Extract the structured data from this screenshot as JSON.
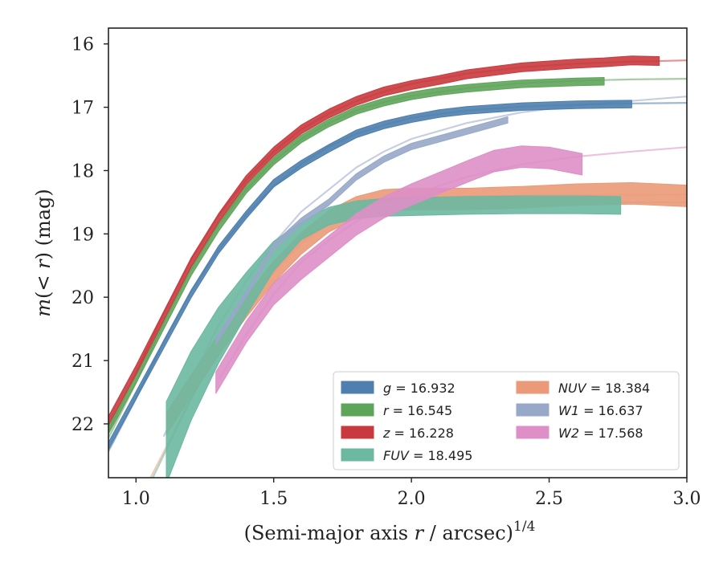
{
  "chart_data": {
    "type": "line",
    "xlabel": "(Semi-major axis r / arcsec)",
    "xlabel_sup": "1/4",
    "ylabel": "m(< r) (mag)",
    "xlim": [
      0.9,
      3.0
    ],
    "ylim": [
      22.85,
      15.75
    ],
    "y_inverted": true,
    "xticks": [
      1.0,
      1.5,
      2.0,
      2.5,
      3.0
    ],
    "xtick_labels": [
      "1.0",
      "1.5",
      "2.0",
      "2.5",
      "3.0"
    ],
    "yticks": [
      16,
      17,
      18,
      19,
      20,
      21,
      22
    ],
    "ytick_labels": [
      "16",
      "17",
      "18",
      "19",
      "20",
      "21",
      "22"
    ],
    "grid": false,
    "legend_position": "lower-right",
    "series": [
      {
        "name": "g",
        "label_value": "= 16.932",
        "color": "#4e7fae",
        "fit": [
          [
            0.88,
            22.6
          ],
          [
            1.0,
            21.6
          ],
          [
            1.1,
            20.7
          ],
          [
            1.2,
            19.9
          ],
          [
            1.3,
            19.25
          ],
          [
            1.4,
            18.7
          ],
          [
            1.5,
            18.25
          ],
          [
            1.6,
            17.9
          ],
          [
            1.7,
            17.62
          ],
          [
            1.8,
            17.42
          ],
          [
            1.9,
            17.28
          ],
          [
            2.0,
            17.17
          ],
          [
            2.2,
            17.05
          ],
          [
            2.4,
            16.99
          ],
          [
            2.6,
            16.96
          ],
          [
            2.8,
            16.94
          ],
          [
            3.0,
            16.93
          ]
        ],
        "data": [
          [
            0.9,
            22.35
          ],
          [
            1.0,
            21.55
          ],
          [
            1.1,
            20.75
          ],
          [
            1.2,
            19.95
          ],
          [
            1.3,
            19.25
          ],
          [
            1.4,
            18.7
          ],
          [
            1.5,
            18.2
          ],
          [
            1.6,
            17.9
          ],
          [
            1.7,
            17.65
          ],
          [
            1.8,
            17.42
          ],
          [
            1.9,
            17.28
          ],
          [
            2.0,
            17.18
          ],
          [
            2.1,
            17.1
          ],
          [
            2.2,
            17.05
          ],
          [
            2.4,
            16.99
          ],
          [
            2.6,
            16.96
          ],
          [
            2.8,
            16.95
          ]
        ],
        "band": 0.06
      },
      {
        "name": "r",
        "label_value": "= 16.545",
        "color": "#5fa45b",
        "fit": [
          [
            0.88,
            22.4
          ],
          [
            1.0,
            21.35
          ],
          [
            1.1,
            20.4
          ],
          [
            1.2,
            19.55
          ],
          [
            1.3,
            18.85
          ],
          [
            1.4,
            18.3
          ],
          [
            1.5,
            17.85
          ],
          [
            1.6,
            17.5
          ],
          [
            1.7,
            17.25
          ],
          [
            1.8,
            17.05
          ],
          [
            1.9,
            16.92
          ],
          [
            2.0,
            16.82
          ],
          [
            2.2,
            16.7
          ],
          [
            2.4,
            16.62
          ],
          [
            2.6,
            16.58
          ],
          [
            2.8,
            16.56
          ],
          [
            3.0,
            16.55
          ]
        ],
        "data": [
          [
            0.9,
            22.1
          ],
          [
            1.0,
            21.3
          ],
          [
            1.1,
            20.45
          ],
          [
            1.2,
            19.6
          ],
          [
            1.3,
            18.9
          ],
          [
            1.4,
            18.3
          ],
          [
            1.5,
            17.85
          ],
          [
            1.6,
            17.5
          ],
          [
            1.7,
            17.25
          ],
          [
            1.8,
            17.05
          ],
          [
            1.9,
            16.92
          ],
          [
            2.0,
            16.82
          ],
          [
            2.1,
            16.75
          ],
          [
            2.2,
            16.7
          ],
          [
            2.4,
            16.63
          ],
          [
            2.6,
            16.6
          ],
          [
            2.7,
            16.59
          ]
        ],
        "band": 0.06
      },
      {
        "name": "z",
        "label_value": "= 16.228",
        "color": "#c93a3e",
        "fit": [
          [
            0.88,
            22.3
          ],
          [
            1.0,
            21.2
          ],
          [
            1.1,
            20.25
          ],
          [
            1.2,
            19.4
          ],
          [
            1.3,
            18.7
          ],
          [
            1.4,
            18.15
          ],
          [
            1.5,
            17.7
          ],
          [
            1.6,
            17.35
          ],
          [
            1.7,
            17.1
          ],
          [
            1.8,
            16.9
          ],
          [
            1.9,
            16.75
          ],
          [
            2.0,
            16.63
          ],
          [
            2.2,
            16.47
          ],
          [
            2.4,
            16.37
          ],
          [
            2.6,
            16.31
          ],
          [
            2.8,
            16.28
          ],
          [
            3.0,
            16.26
          ]
        ],
        "data": [
          [
            0.9,
            21.95
          ],
          [
            1.0,
            21.15
          ],
          [
            1.1,
            20.3
          ],
          [
            1.2,
            19.45
          ],
          [
            1.3,
            18.75
          ],
          [
            1.4,
            18.15
          ],
          [
            1.5,
            17.7
          ],
          [
            1.6,
            17.35
          ],
          [
            1.7,
            17.1
          ],
          [
            1.8,
            16.9
          ],
          [
            1.9,
            16.75
          ],
          [
            2.0,
            16.65
          ],
          [
            2.1,
            16.57
          ],
          [
            2.2,
            16.48
          ],
          [
            2.4,
            16.37
          ],
          [
            2.6,
            16.31
          ],
          [
            2.7,
            16.29
          ],
          [
            2.8,
            16.26
          ],
          [
            2.9,
            16.27
          ]
        ],
        "band": 0.07
      },
      {
        "name": "FUV",
        "label_value": "= 18.495",
        "color": "#6cb8a1",
        "fit": [
          [
            0.9,
            24.2
          ],
          [
            1.0,
            23.4
          ],
          [
            1.1,
            22.5
          ],
          [
            1.2,
            21.6
          ],
          [
            1.3,
            20.85
          ],
          [
            1.4,
            20.15
          ],
          [
            1.5,
            19.55
          ],
          [
            1.6,
            19.1
          ],
          [
            1.7,
            18.85
          ],
          [
            1.8,
            18.68
          ],
          [
            1.9,
            18.58
          ],
          [
            2.0,
            18.54
          ],
          [
            2.2,
            18.51
          ],
          [
            2.5,
            18.5
          ],
          [
            3.0,
            18.5
          ]
        ],
        "data": [
          [
            1.11,
            22.3
          ],
          [
            1.2,
            21.4
          ],
          [
            1.3,
            20.6
          ],
          [
            1.4,
            19.95
          ],
          [
            1.5,
            19.35
          ],
          [
            1.6,
            18.95
          ],
          [
            1.7,
            18.72
          ],
          [
            1.8,
            18.62
          ],
          [
            1.9,
            18.58
          ],
          [
            2.0,
            18.57
          ],
          [
            2.2,
            18.55
          ],
          [
            2.4,
            18.54
          ],
          [
            2.6,
            18.54
          ],
          [
            2.76,
            18.55
          ]
        ],
        "band_start": 0.65,
        "band": 0.14
      },
      {
        "name": "NUV",
        "label_value": "= 18.384",
        "color": "#ea9a78",
        "fit": [
          [
            0.9,
            24.1
          ],
          [
            1.0,
            23.3
          ],
          [
            1.1,
            22.45
          ],
          [
            1.2,
            21.6
          ],
          [
            1.3,
            20.85
          ],
          [
            1.4,
            20.2
          ],
          [
            1.5,
            19.6
          ],
          [
            1.6,
            19.15
          ],
          [
            1.7,
            18.82
          ],
          [
            1.8,
            18.6
          ],
          [
            1.9,
            18.47
          ],
          [
            2.0,
            18.42
          ],
          [
            2.5,
            18.39
          ],
          [
            3.0,
            18.38
          ]
        ],
        "data": [
          [
            1.11,
            22.0
          ],
          [
            1.2,
            21.4
          ],
          [
            1.3,
            20.75
          ],
          [
            1.4,
            20.15
          ],
          [
            1.5,
            19.6
          ],
          [
            1.6,
            19.15
          ],
          [
            1.7,
            18.8
          ],
          [
            1.8,
            18.58
          ],
          [
            1.9,
            18.47
          ],
          [
            2.0,
            18.45
          ],
          [
            2.2,
            18.45
          ],
          [
            2.4,
            18.42
          ],
          [
            2.6,
            18.38
          ],
          [
            2.8,
            18.36
          ],
          [
            3.0,
            18.4
          ]
        ],
        "band": 0.17
      },
      {
        "name": "W1",
        "label_value": "= 16.637",
        "color": "#97a8c8",
        "fit": [
          [
            1.1,
            22.2
          ],
          [
            1.2,
            21.3
          ],
          [
            1.3,
            20.45
          ],
          [
            1.4,
            19.75
          ],
          [
            1.5,
            19.15
          ],
          [
            1.6,
            18.65
          ],
          [
            1.7,
            18.3
          ],
          [
            1.8,
            17.95
          ],
          [
            1.9,
            17.7
          ],
          [
            2.0,
            17.5
          ],
          [
            2.2,
            17.25
          ],
          [
            2.4,
            17.08
          ],
          [
            2.6,
            16.97
          ],
          [
            2.8,
            16.9
          ],
          [
            3.0,
            16.83
          ]
        ],
        "data": [
          [
            1.29,
            20.7
          ],
          [
            1.4,
            19.95
          ],
          [
            1.5,
            19.2
          ],
          [
            1.6,
            18.8
          ],
          [
            1.7,
            18.5
          ],
          [
            1.8,
            18.1
          ],
          [
            1.9,
            17.82
          ],
          [
            2.0,
            17.62
          ],
          [
            2.1,
            17.5
          ],
          [
            2.2,
            17.38
          ],
          [
            2.35,
            17.2
          ]
        ],
        "band": 0.05
      },
      {
        "name": "W2",
        "label_value": "= 17.568",
        "color": "#dd8fc6",
        "fit": [
          [
            1.3,
            21.3
          ],
          [
            1.4,
            20.6
          ],
          [
            1.5,
            19.95
          ],
          [
            1.6,
            19.45
          ],
          [
            1.7,
            19.1
          ],
          [
            1.8,
            18.8
          ],
          [
            1.9,
            18.57
          ],
          [
            2.0,
            18.38
          ],
          [
            2.2,
            18.1
          ],
          [
            2.4,
            17.9
          ],
          [
            2.6,
            17.78
          ],
          [
            2.8,
            17.7
          ],
          [
            3.0,
            17.63
          ]
        ],
        "data": [
          [
            1.29,
            21.35
          ],
          [
            1.4,
            20.55
          ],
          [
            1.5,
            19.95
          ],
          [
            1.6,
            19.55
          ],
          [
            1.7,
            19.2
          ],
          [
            1.8,
            18.85
          ],
          [
            1.9,
            18.58
          ],
          [
            2.0,
            18.38
          ],
          [
            2.1,
            18.2
          ],
          [
            2.2,
            18.02
          ],
          [
            2.3,
            17.85
          ],
          [
            2.4,
            17.78
          ],
          [
            2.5,
            17.8
          ],
          [
            2.62,
            17.9
          ]
        ],
        "band": 0.17
      }
    ]
  }
}
